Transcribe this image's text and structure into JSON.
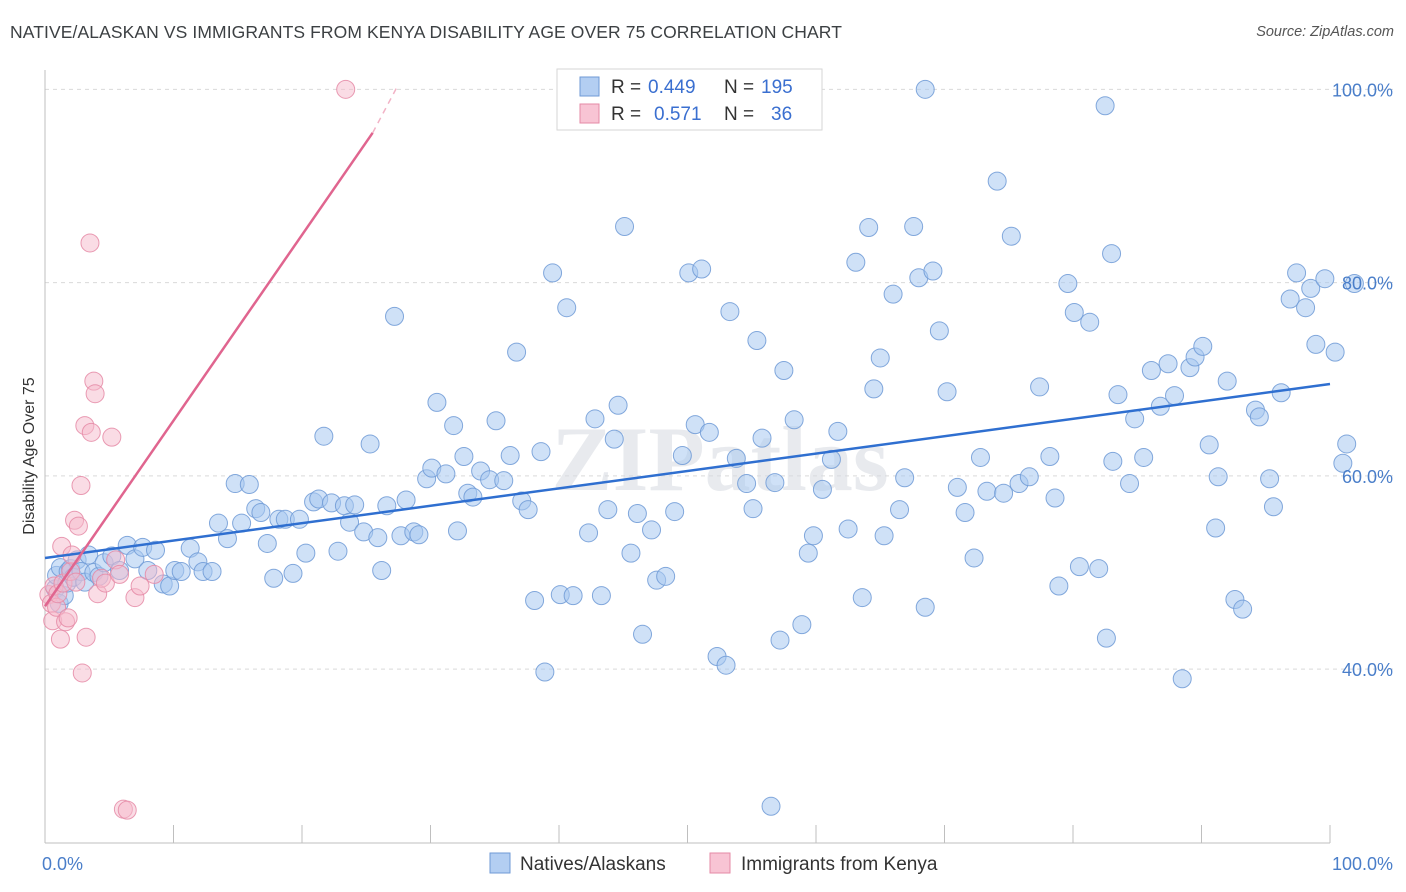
{
  "title": "NATIVE/ALASKAN VS IMMIGRANTS FROM KENYA DISABILITY AGE OVER 75 CORRELATION CHART",
  "source": "Source: ZipAtlas.com",
  "colors": {
    "blue": "#a8c8f0",
    "blue_stroke": "#6f9ad6",
    "blue_line": "#2f6fd0",
    "pink": "#f6b9cb",
    "pink_stroke": "#e58aa6",
    "pink_line": "#e0658f"
  },
  "legend": {
    "rows": [
      {
        "r_label": "R =",
        "r_value": "0.449",
        "n_label": "N =",
        "n_value": "195"
      },
      {
        "r_label": "R =",
        "r_value": "0.571",
        "n_label": "N =",
        "n_value": "36"
      }
    ]
  },
  "bottom_legend": [
    "Natives/Alaskans",
    "Immigrants from Kenya"
  ],
  "watermark": "ZIPatlas",
  "chart_data": {
    "type": "scatter",
    "xlabel": "",
    "ylabel": "Disability Age Over 75",
    "x_tick_labels": [
      "0.0%",
      "100.0%"
    ],
    "y_tick_labels": [
      "40.0%",
      "60.0%",
      "80.0%",
      "100.0%"
    ],
    "y_ticks": [
      40,
      60,
      80,
      100
    ],
    "xlim": [
      0,
      100
    ],
    "ylim": [
      22,
      102
    ],
    "grid": true,
    "series": [
      {
        "name": "Natives/Alaskans",
        "trend": [
          [
            0,
            51.5
          ],
          [
            100,
            69.5
          ]
        ],
        "points": [
          [
            0.8,
            48.3
          ],
          [
            0.9,
            49.7
          ],
          [
            1.1,
            46.8
          ],
          [
            1.2,
            50.5
          ],
          [
            1.5,
            47.6
          ],
          [
            1.7,
            48.9
          ],
          [
            1.8,
            50.1
          ],
          [
            2.0,
            50.4
          ],
          [
            2.2,
            49.5
          ],
          [
            2.5,
            51.3
          ],
          [
            2.8,
            50.1
          ],
          [
            3.1,
            49.0
          ],
          [
            3.4,
            51.8
          ],
          [
            3.8,
            50.0
          ],
          [
            4.2,
            49.6
          ],
          [
            4.6,
            51.0
          ],
          [
            5.2,
            51.7
          ],
          [
            5.8,
            50.2
          ],
          [
            6.4,
            52.8
          ],
          [
            7.0,
            51.4
          ],
          [
            7.6,
            52.6
          ],
          [
            8.0,
            50.2
          ],
          [
            8.6,
            52.3
          ],
          [
            9.2,
            48.8
          ],
          [
            9.7,
            48.6
          ],
          [
            10.1,
            50.2
          ],
          [
            10.6,
            50.1
          ],
          [
            11.3,
            52.5
          ],
          [
            11.9,
            51.1
          ],
          [
            12.3,
            50.1
          ],
          [
            13.0,
            50.1
          ],
          [
            13.5,
            55.1
          ],
          [
            14.2,
            53.5
          ],
          [
            14.8,
            59.2
          ],
          [
            15.3,
            55.1
          ],
          [
            15.9,
            59.1
          ],
          [
            16.4,
            56.6
          ],
          [
            16.8,
            56.2
          ],
          [
            17.3,
            53.0
          ],
          [
            17.8,
            49.4
          ],
          [
            18.2,
            55.5
          ],
          [
            18.7,
            55.5
          ],
          [
            19.3,
            49.9
          ],
          [
            19.8,
            55.5
          ],
          [
            20.3,
            52.0
          ],
          [
            20.9,
            57.3
          ],
          [
            21.3,
            57.6
          ],
          [
            21.7,
            64.1
          ],
          [
            22.3,
            57.2
          ],
          [
            22.8,
            52.2
          ],
          [
            23.3,
            56.9
          ],
          [
            23.7,
            55.2
          ],
          [
            24.1,
            57.0
          ],
          [
            24.8,
            54.2
          ],
          [
            25.3,
            63.3
          ],
          [
            25.9,
            53.6
          ],
          [
            26.2,
            50.2
          ],
          [
            26.6,
            56.9
          ],
          [
            27.2,
            76.5
          ],
          [
            27.7,
            53.8
          ],
          [
            28.1,
            57.5
          ],
          [
            28.7,
            54.2
          ],
          [
            29.1,
            53.9
          ],
          [
            29.7,
            59.7
          ],
          [
            30.1,
            60.8
          ],
          [
            30.5,
            67.6
          ],
          [
            31.2,
            60.2
          ],
          [
            31.8,
            65.2
          ],
          [
            32.1,
            54.3
          ],
          [
            32.6,
            62.0
          ],
          [
            32.9,
            58.2
          ],
          [
            33.3,
            57.8
          ],
          [
            33.9,
            60.5
          ],
          [
            34.6,
            59.6
          ],
          [
            35.1,
            65.7
          ],
          [
            35.7,
            59.5
          ],
          [
            36.2,
            62.1
          ],
          [
            36.7,
            72.8
          ],
          [
            37.1,
            57.4
          ],
          [
            37.6,
            56.5
          ],
          [
            38.1,
            47.1
          ],
          [
            38.6,
            62.5
          ],
          [
            38.9,
            39.7
          ],
          [
            39.5,
            81.0
          ],
          [
            40.1,
            47.7
          ],
          [
            40.6,
            77.4
          ],
          [
            41.1,
            47.6
          ],
          [
            42.3,
            54.1
          ],
          [
            42.8,
            65.9
          ],
          [
            43.3,
            47.6
          ],
          [
            43.8,
            56.5
          ],
          [
            44.3,
            63.8
          ],
          [
            44.6,
            67.3
          ],
          [
            45.1,
            85.8
          ],
          [
            45.6,
            52.0
          ],
          [
            46.1,
            56.1
          ],
          [
            46.5,
            43.6
          ],
          [
            47.2,
            54.4
          ],
          [
            47.6,
            49.2
          ],
          [
            48.3,
            49.6
          ],
          [
            49.0,
            56.3
          ],
          [
            49.6,
            62.1
          ],
          [
            50.1,
            81.0
          ],
          [
            50.6,
            65.3
          ],
          [
            51.1,
            81.4
          ],
          [
            51.7,
            64.5
          ],
          [
            52.3,
            41.3
          ],
          [
            53.0,
            40.4
          ],
          [
            53.3,
            77.0
          ],
          [
            53.8,
            61.8
          ],
          [
            54.6,
            59.2
          ],
          [
            55.1,
            56.6
          ],
          [
            55.4,
            74.0
          ],
          [
            55.8,
            63.9
          ],
          [
            56.5,
            25.8
          ],
          [
            56.8,
            59.3
          ],
          [
            57.2,
            43.0
          ],
          [
            57.5,
            70.9
          ],
          [
            58.3,
            65.8
          ],
          [
            58.9,
            44.6
          ],
          [
            59.4,
            52.0
          ],
          [
            59.8,
            53.8
          ],
          [
            60.5,
            58.6
          ],
          [
            61.2,
            61.7
          ],
          [
            61.7,
            64.6
          ],
          [
            62.5,
            54.5
          ],
          [
            63.1,
            82.1
          ],
          [
            63.6,
            47.4
          ],
          [
            64.1,
            85.7
          ],
          [
            64.5,
            69.0
          ],
          [
            65.0,
            72.2
          ],
          [
            65.3,
            53.8
          ],
          [
            66.0,
            78.8
          ],
          [
            66.5,
            56.5
          ],
          [
            66.9,
            59.8
          ],
          [
            67.6,
            85.8
          ],
          [
            68.0,
            80.5
          ],
          [
            68.5,
            46.4
          ],
          [
            69.1,
            81.2
          ],
          [
            69.6,
            75.0
          ],
          [
            70.2,
            68.7
          ],
          [
            71.0,
            58.8
          ],
          [
            71.6,
            56.2
          ],
          [
            72.3,
            51.5
          ],
          [
            72.8,
            61.9
          ],
          [
            73.3,
            58.4
          ],
          [
            74.1,
            90.5
          ],
          [
            74.6,
            58.2
          ],
          [
            75.2,
            84.8
          ],
          [
            75.8,
            59.2
          ],
          [
            76.6,
            59.9
          ],
          [
            77.4,
            69.2
          ],
          [
            78.2,
            62.0
          ],
          [
            78.6,
            57.7
          ],
          [
            78.9,
            48.6
          ],
          [
            79.6,
            79.9
          ],
          [
            80.1,
            76.9
          ],
          [
            80.5,
            50.6
          ],
          [
            81.3,
            75.9
          ],
          [
            82.0,
            50.4
          ],
          [
            82.6,
            43.2
          ],
          [
            83.1,
            61.5
          ],
          [
            83.5,
            68.4
          ],
          [
            84.4,
            59.2
          ],
          [
            84.8,
            65.9
          ],
          [
            85.5,
            61.9
          ],
          [
            86.1,
            70.9
          ],
          [
            86.8,
            67.2
          ],
          [
            87.4,
            71.6
          ],
          [
            87.9,
            68.3
          ],
          [
            88.5,
            39.0
          ],
          [
            89.1,
            71.2
          ],
          [
            89.5,
            72.3
          ],
          [
            90.1,
            73.4
          ],
          [
            90.6,
            63.2
          ],
          [
            91.1,
            54.6
          ],
          [
            91.3,
            59.9
          ],
          [
            92.0,
            69.8
          ],
          [
            92.6,
            47.2
          ],
          [
            93.2,
            46.2
          ],
          [
            94.2,
            66.8
          ],
          [
            94.5,
            66.1
          ],
          [
            95.3,
            59.7
          ],
          [
            95.6,
            56.8
          ],
          [
            96.2,
            68.6
          ],
          [
            96.9,
            78.3
          ],
          [
            97.4,
            81.0
          ],
          [
            98.1,
            77.4
          ],
          [
            98.5,
            79.4
          ],
          [
            98.9,
            73.6
          ],
          [
            99.6,
            80.4
          ],
          [
            100.4,
            72.8
          ],
          [
            101.0,
            61.3
          ],
          [
            101.3,
            63.3
          ],
          [
            101.9,
            79.9
          ]
        ],
        "extra_points": [
          [
            68.5,
            100.0
          ],
          [
            82.5,
            98.3
          ],
          [
            83.0,
            83.0
          ]
        ]
      },
      {
        "name": "Immigrants from Kenya",
        "trend": [
          [
            0,
            46.5
          ],
          [
            25.5,
            95.5
          ]
        ],
        "trend_dashed": [
          [
            25.5,
            95.5
          ],
          [
            27.5,
            100.5
          ]
        ],
        "points": [
          [
            0.3,
            47.7
          ],
          [
            0.5,
            46.8
          ],
          [
            0.6,
            45.0
          ],
          [
            0.7,
            48.6
          ],
          [
            0.9,
            46.4
          ],
          [
            1.0,
            47.8
          ],
          [
            1.2,
            43.1
          ],
          [
            1.3,
            52.7
          ],
          [
            1.4,
            48.9
          ],
          [
            1.6,
            44.9
          ],
          [
            1.8,
            45.3
          ],
          [
            2.0,
            50.1
          ],
          [
            2.1,
            51.8
          ],
          [
            2.3,
            55.4
          ],
          [
            2.4,
            49.0
          ],
          [
            2.6,
            54.8
          ],
          [
            2.8,
            59.0
          ],
          [
            2.9,
            39.6
          ],
          [
            3.1,
            65.2
          ],
          [
            3.2,
            43.3
          ],
          [
            3.5,
            84.1
          ],
          [
            3.6,
            64.5
          ],
          [
            3.8,
            69.8
          ],
          [
            3.9,
            68.5
          ],
          [
            4.1,
            47.8
          ],
          [
            4.4,
            49.4
          ],
          [
            4.7,
            48.9
          ],
          [
            5.2,
            64.0
          ],
          [
            5.5,
            51.3
          ],
          [
            5.8,
            49.8
          ],
          [
            6.1,
            25.5
          ],
          [
            6.4,
            25.4
          ],
          [
            7.0,
            47.4
          ],
          [
            7.4,
            48.6
          ],
          [
            8.5,
            49.8
          ],
          [
            23.4,
            100.0
          ]
        ]
      }
    ]
  }
}
